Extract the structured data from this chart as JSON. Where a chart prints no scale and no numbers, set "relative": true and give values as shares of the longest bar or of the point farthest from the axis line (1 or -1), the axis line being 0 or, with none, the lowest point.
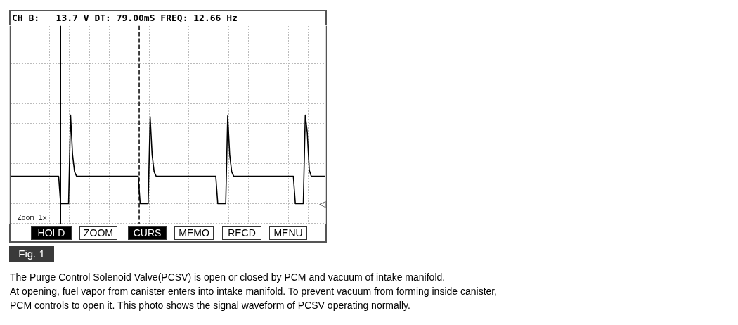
{
  "chart_data": {
    "type": "line",
    "relative": true,
    "title": "CH B:   13.7 V DT: 79.00mS FREQ: 12.66 Hz",
    "categories": [
      null,
      null,
      null,
      null,
      null,
      null,
      null,
      null,
      null,
      null,
      null,
      null,
      null,
      null,
      null,
      null,
      null,
      null,
      null,
      null,
      null,
      null,
      null,
      null,
      null,
      null,
      null,
      null,
      null,
      null,
      null,
      null,
      null,
      null,
      null,
      null,
      null,
      null,
      null,
      null,
      null,
      null,
      null,
      null,
      null,
      null,
      null,
      null,
      null,
      null,
      null,
      null,
      null,
      null,
      null,
      null,
      null,
      null,
      null,
      null,
      null,
      null,
      null,
      null,
      null,
      null,
      null,
      null,
      null,
      null,
      null,
      null,
      null,
      null,
      null,
      null,
      null,
      null,
      null,
      null,
      null,
      null,
      null,
      null,
      null,
      null,
      null,
      null,
      null,
      null,
      null,
      null,
      null,
      null,
      null,
      null,
      null,
      null,
      null,
      null,
      null,
      null,
      null,
      null,
      null,
      null,
      null,
      null,
      null,
      null,
      null,
      null,
      null,
      null,
      null,
      null,
      null,
      null,
      null,
      null,
      null,
      null,
      null,
      null,
      null,
      null,
      null,
      null,
      null,
      null,
      null,
      null,
      null,
      null,
      null,
      null,
      null,
      null,
      null,
      null,
      null,
      null,
      null,
      null,
      null,
      null,
      null,
      null,
      null,
      null,
      null,
      null,
      null,
      null,
      null,
      null,
      null,
      null,
      null
    ],
    "grid": true,
    "marker": "none",
    "line_style": "solid",
    "series": [
      {
        "color": "#000000",
        "values": [
          0.31,
          0.31,
          0.31,
          0.31,
          0.31,
          0.31,
          0.31,
          0.31,
          0.31,
          0.31,
          0.31,
          0.31,
          0.31,
          0.31,
          0.31,
          0.31,
          0.31,
          0.31,
          0.31,
          0.31,
          0.31,
          0.31,
          0.31,
          0.31,
          0.31,
          0,
          0,
          0,
          0,
          0,
          1.0,
          0.55,
          0.36,
          0.31,
          0.31,
          0.31,
          0.31,
          0.31,
          0.31,
          0.31,
          0.31,
          0.31,
          0.31,
          0.31,
          0.31,
          0.31,
          0.31,
          0.31,
          0.31,
          0.31,
          0.31,
          0.31,
          0.31,
          0.31,
          0.31,
          0.31,
          0.31,
          0.31,
          0.31,
          0.31,
          0.31,
          0.31,
          0.31,
          0.31,
          0.31,
          0,
          0,
          0,
          0,
          0,
          0.98,
          0.55,
          0.36,
          0.31,
          0.31,
          0.31,
          0.31,
          0.31,
          0.31,
          0.31,
          0.31,
          0.31,
          0.31,
          0.31,
          0.31,
          0.31,
          0.31,
          0.31,
          0.31,
          0.31,
          0.31,
          0.31,
          0.31,
          0.31,
          0.31,
          0.31,
          0.31,
          0.31,
          0.31,
          0.31,
          0.31,
          0.31,
          0.31,
          0.31,
          0,
          0,
          0,
          0,
          0,
          0.99,
          0.55,
          0.36,
          0.31,
          0.31,
          0.31,
          0.31,
          0.31,
          0.31,
          0.31,
          0.31,
          0.31,
          0.31,
          0.31,
          0.31,
          0.31,
          0.31,
          0.31,
          0.31,
          0.31,
          0.31,
          0.31,
          0.31,
          0.31,
          0.31,
          0.31,
          0.31,
          0.31,
          0.31,
          0.31,
          0.31,
          0.31,
          0.31,
          0.31,
          0,
          0,
          0,
          0,
          0,
          1.0,
          0.8,
          0.38,
          0.31,
          0.31,
          0.31,
          0.31,
          0.31,
          0.31,
          0.31,
          0.31
        ]
      }
    ],
    "annotations": [
      "◁",
      "Zoom 1x",
      "HOLD",
      "ZOOM",
      "CURS",
      "MEMO",
      "RECD",
      "MENU",
      "Fig. 1",
      "The Purge Control Solenoid Valve(PCSV) is open or closed by PCM and vacuum of intake manifold.",
      "At opening, fuel vapor from canister enters into intake manifold. To prevent vacuum from forming inside canister,",
      "PCM controls to open it. This photo shows the signal waveform of PCSV operating normally."
    ]
  }
}
